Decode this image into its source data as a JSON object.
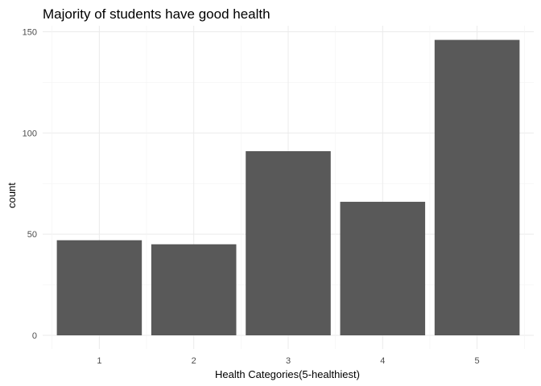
{
  "chart_data": {
    "type": "bar",
    "title": "Majority of students have good health",
    "xlabel": "Health Categories(5-healthiest)",
    "ylabel": "count",
    "categories": [
      "1",
      "2",
      "3",
      "4",
      "5"
    ],
    "values": [
      47,
      45,
      91,
      66,
      146
    ],
    "ylim": [
      0,
      153
    ],
    "yticks": [
      0,
      50,
      100,
      150
    ],
    "grid": true,
    "bar_color": "#595959",
    "legend": "none"
  }
}
